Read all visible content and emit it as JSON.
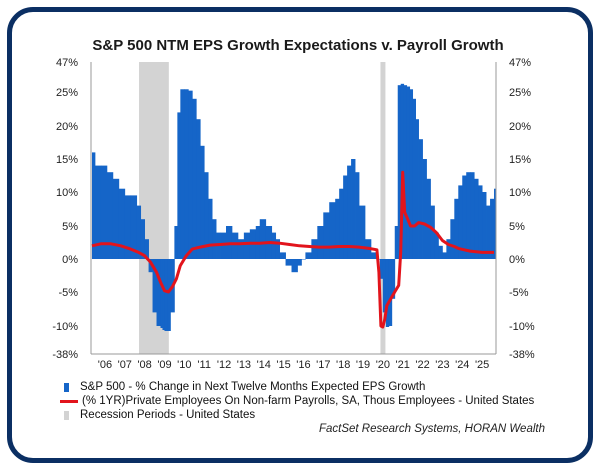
{
  "chart_data": {
    "type": "bar+line",
    "title": "S&P 500 NTM EPS Growth Expectations v. Payroll Growth",
    "y_tick_labels": [
      "47%",
      "25%",
      "20%",
      "15%",
      "10%",
      "5%",
      "0%",
      "-5%",
      "-10%",
      "-38%"
    ],
    "y_tick_values": [
      47,
      25,
      20,
      15,
      10,
      5,
      0,
      -5,
      -10,
      -38
    ],
    "x_tick_labels": [
      "'06",
      "'07",
      "'08",
      "'09",
      "'10",
      "'11",
      "'12",
      "'13",
      "'14",
      "'15",
      "'16",
      "'17",
      "'18",
      "'19",
      "'20",
      "'21",
      "'22",
      "'23",
      "'24",
      "'25"
    ],
    "x_range": [
      2005.5,
      2025.9
    ],
    "recessions": [
      [
        2007.92,
        2009.42
      ],
      [
        2020.08,
        2020.33
      ]
    ],
    "series": [
      {
        "name": "S&P 500 - % Change in Next Twelve Months Expected EPS Growth",
        "kind": "bar",
        "color": "#1565c8",
        "x": [
          2005.55,
          2005.7,
          2006.0,
          2006.3,
          2006.6,
          2006.9,
          2007.2,
          2007.5,
          2007.8,
          2008.0,
          2008.2,
          2008.4,
          2008.6,
          2008.8,
          2009.0,
          2009.1,
          2009.2,
          2009.35,
          2009.5,
          2009.7,
          2009.85,
          2010.0,
          2010.2,
          2010.4,
          2010.6,
          2010.8,
          2011.0,
          2011.2,
          2011.4,
          2011.6,
          2011.8,
          2012.0,
          2012.3,
          2012.6,
          2012.9,
          2013.2,
          2013.5,
          2013.8,
          2014.0,
          2014.3,
          2014.6,
          2014.8,
          2015.0,
          2015.3,
          2015.6,
          2015.9,
          2016.1,
          2016.3,
          2016.6,
          2016.9,
          2017.2,
          2017.5,
          2017.8,
          2018.0,
          2018.2,
          2018.4,
          2018.6,
          2018.8,
          2019.0,
          2019.3,
          2019.6,
          2019.9,
          2020.05,
          2020.2,
          2020.35,
          2020.5,
          2020.65,
          2020.8,
          2020.95,
          2021.1,
          2021.25,
          2021.4,
          2021.55,
          2021.7,
          2021.85,
          2022.0,
          2022.2,
          2022.4,
          2022.6,
          2022.8,
          2023.0,
          2023.2,
          2023.4,
          2023.6,
          2023.8,
          2024.0,
          2024.2,
          2024.4,
          2024.6,
          2024.8,
          2025.0,
          2025.2,
          2025.4,
          2025.6,
          2025.8
        ],
        "y": [
          16,
          14,
          14,
          13,
          12,
          10.5,
          9.5,
          9.5,
          8,
          6,
          3,
          -2,
          -8,
          -10,
          -12,
          -14,
          -15,
          -15,
          -8,
          5,
          22,
          27,
          27,
          26,
          24,
          21,
          17,
          13,
          9,
          6,
          4,
          4,
          5,
          4,
          3,
          4,
          4.5,
          5,
          6,
          5,
          4,
          3,
          1,
          -1,
          -2,
          -1,
          0,
          1,
          3,
          5,
          7,
          8.5,
          9,
          10.5,
          12.5,
          14,
          15,
          13,
          8,
          3,
          1,
          0,
          -3,
          -8,
          -11,
          -10,
          -6,
          5,
          30,
          31,
          30,
          29,
          27,
          24,
          21,
          18,
          15,
          12,
          8,
          4,
          2,
          1,
          3,
          6,
          9,
          11,
          12.5,
          13,
          13,
          12,
          11,
          10,
          8,
          9,
          10.5
        ]
      },
      {
        "name": "(% 1YR)Private Employees On Non-farm Payrolls, SA, Thous Employees - United States",
        "kind": "line",
        "color": "#e2141c",
        "x": [
          2005.55,
          2006.0,
          2006.5,
          2007.0,
          2007.5,
          2007.9,
          2008.2,
          2008.5,
          2008.8,
          2009.0,
          2009.2,
          2009.4,
          2009.6,
          2009.8,
          2010.0,
          2010.3,
          2010.6,
          2011.0,
          2011.5,
          2012.0,
          2012.5,
          2013.0,
          2013.5,
          2014.0,
          2014.5,
          2015.0,
          2015.5,
          2016.0,
          2016.5,
          2017.0,
          2017.5,
          2018.0,
          2018.5,
          2019.0,
          2019.5,
          2019.9,
          2020.0,
          2020.1,
          2020.2,
          2020.3,
          2020.4,
          2020.6,
          2020.8,
          2021.0,
          2021.1,
          2021.2,
          2021.3,
          2021.45,
          2021.6,
          2021.8,
          2022.0,
          2022.3,
          2022.6,
          2022.9,
          2023.2,
          2023.5,
          2023.8,
          2024.0,
          2024.3,
          2024.6,
          2024.9,
          2025.2,
          2025.5,
          2025.8
        ],
        "y": [
          2,
          2.3,
          2.3,
          2,
          1.5,
          1,
          0.5,
          -0.5,
          -2,
          -3.5,
          -4.8,
          -5,
          -4.2,
          -3,
          -1,
          0.5,
          1.5,
          1.8,
          2.1,
          2.2,
          2.3,
          2.3,
          2.4,
          2.4,
          2.5,
          2.4,
          2.2,
          2.0,
          1.9,
          1.8,
          1.8,
          1.9,
          1.9,
          1.8,
          1.6,
          1.4,
          -2,
          -10,
          -11,
          -9,
          -7,
          -6,
          -5,
          -4,
          1,
          13,
          7,
          6,
          5,
          5,
          5.5,
          5.3,
          4.8,
          4,
          2.8,
          2.2,
          1.9,
          1.6,
          1.4,
          1.2,
          1.1,
          1.0,
          1.0,
          1.0
        ]
      },
      {
        "name": "Recession Periods - United States",
        "kind": "band",
        "color": "#d3d3d3"
      }
    ],
    "source": "FactSet Research Systems, HORAN Wealth"
  }
}
